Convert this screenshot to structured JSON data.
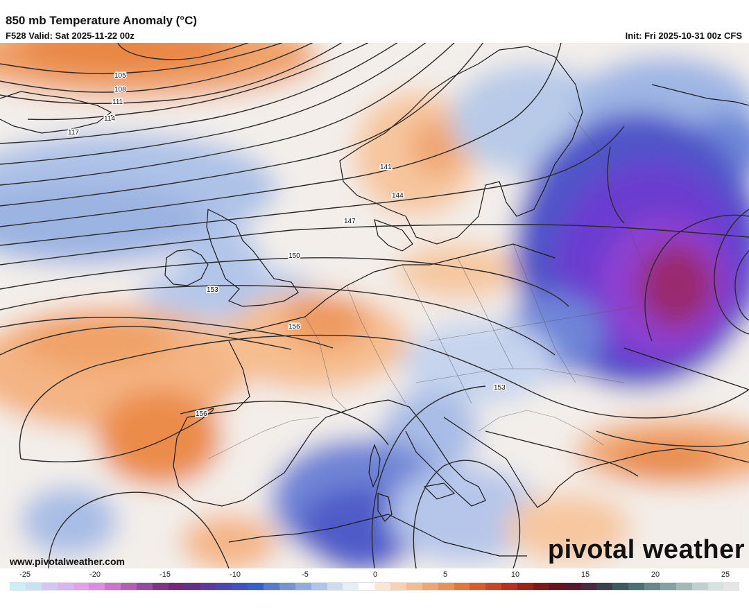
{
  "header": {
    "title": "850 mb Temperature Anomaly (°C)",
    "valid": "F528 Valid: Sat 2025-11-22 00z",
    "init": "Init: Fri 2025-10-31 00z CFS"
  },
  "footer": {
    "website": "www.pivotalweather.com",
    "brand": "pivotal weather"
  },
  "contour_labels": [
    "105",
    "108",
    "111",
    "114",
    "117",
    "141",
    "144",
    "147",
    "150",
    "153",
    "156",
    "156",
    "153"
  ],
  "colorbar": {
    "ticks": [
      "-25",
      "-20",
      "-15",
      "-10",
      "-5",
      "0",
      "5",
      "10",
      "15",
      "20",
      "25"
    ],
    "colors": [
      "#c8f0f8",
      "#c6e2f7",
      "#d0c8f2",
      "#d9b6ef",
      "#e2a2ea",
      "#e18be0",
      "#d271d2",
      "#b75db7",
      "#9a4a9c",
      "#7e3882",
      "#6f2b7a",
      "#62308c",
      "#5a3aa2",
      "#4f44b6",
      "#4350c6",
      "#3a5ecc",
      "#5a78d2",
      "#7792d8",
      "#94abe0",
      "#b2c5e8",
      "#cfdcf0",
      "#e8eef6",
      "#ffffff",
      "#fbe6d2",
      "#f8d1b0",
      "#f5bc8e",
      "#f2a56c",
      "#ee8f4e",
      "#e67536",
      "#db5d26",
      "#cc471d",
      "#b73219",
      "#9f2217",
      "#861718",
      "#6e1020",
      "#5d1630",
      "#4c2a3e",
      "#3d4048",
      "#3e5a5a",
      "#4d7070",
      "#6a8888",
      "#88a0a0",
      "#a5b8b8",
      "#c2cfcf",
      "#d8e0e0",
      "#e6e6e6"
    ]
  }
}
